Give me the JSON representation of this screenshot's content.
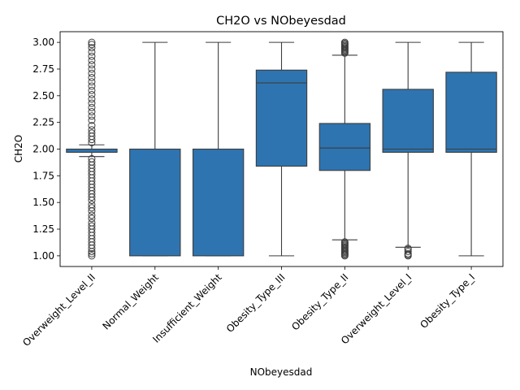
{
  "chart_data": {
    "type": "box",
    "title": "CH2O vs NObeyesdad",
    "xlabel": "NObeyesdad",
    "ylabel": "CH2O",
    "ylim": [
      0.9,
      3.1
    ],
    "yticks": [
      1.0,
      1.25,
      1.5,
      1.75,
      2.0,
      2.25,
      2.5,
      2.75,
      3.0
    ],
    "ytick_labels": [
      "1.00",
      "1.25",
      "1.50",
      "1.75",
      "2.00",
      "2.25",
      "2.50",
      "2.75",
      "3.00"
    ],
    "grid": false,
    "box_color": "#2e74b0",
    "categories": [
      "Overweight_Level_II",
      "Normal_Weight",
      "Insufficient_Weight",
      "Obesity_Type_III",
      "Obesity_Type_II",
      "Overweight_Level_I",
      "Obesity_Type_I"
    ],
    "boxes": [
      {
        "category": "Overweight_Level_II",
        "whisker_low": 1.93,
        "q1": 1.97,
        "median": 2.0,
        "q3": 2.0,
        "whisker_high": 2.04,
        "outliers": [
          1.0,
          1.02,
          1.04,
          1.07,
          1.1,
          1.13,
          1.16,
          1.19,
          1.22,
          1.25,
          1.28,
          1.31,
          1.35,
          1.38,
          1.42,
          1.45,
          1.48,
          1.52,
          1.55,
          1.58,
          1.61,
          1.64,
          1.67,
          1.7,
          1.73,
          1.76,
          1.79,
          1.82,
          1.85,
          1.88,
          1.91,
          2.06,
          2.09,
          2.12,
          2.15,
          2.18,
          2.22,
          2.27,
          2.31,
          2.35,
          2.39,
          2.43,
          2.47,
          2.51,
          2.55,
          2.59,
          2.63,
          2.67,
          2.71,
          2.75,
          2.79,
          2.83,
          2.87,
          2.91,
          2.95,
          2.98,
          3.0
        ]
      },
      {
        "category": "Normal_Weight",
        "whisker_low": 1.0,
        "q1": 1.0,
        "median": 2.0,
        "q3": 2.0,
        "whisker_high": 3.0,
        "outliers": []
      },
      {
        "category": "Insufficient_Weight",
        "whisker_low": 1.0,
        "q1": 1.0,
        "median": 2.0,
        "q3": 2.0,
        "whisker_high": 3.0,
        "outliers": []
      },
      {
        "category": "Obesity_Type_III",
        "whisker_low": 1.0,
        "q1": 1.84,
        "median": 2.62,
        "q3": 2.74,
        "whisker_high": 3.0,
        "outliers": []
      },
      {
        "category": "Obesity_Type_II",
        "whisker_low": 1.15,
        "q1": 1.8,
        "median": 2.01,
        "q3": 2.24,
        "whisker_high": 2.88,
        "outliers": [
          1.0,
          1.01,
          1.02,
          1.03,
          1.04,
          1.05,
          1.06,
          1.07,
          1.08,
          1.09,
          1.1,
          1.11,
          1.12,
          1.13,
          2.9,
          2.91,
          2.92,
          2.93,
          2.94,
          2.95,
          2.96,
          2.97,
          2.98,
          2.99,
          3.0
        ]
      },
      {
        "category": "Overweight_Level_I",
        "whisker_low": 1.08,
        "q1": 1.97,
        "median": 2.0,
        "q3": 2.56,
        "whisker_high": 3.0,
        "outliers": [
          1.0,
          1.01,
          1.02,
          1.04,
          1.06,
          1.07
        ]
      },
      {
        "category": "Obesity_Type_I",
        "whisker_low": 1.0,
        "q1": 1.97,
        "median": 2.0,
        "q3": 2.72,
        "whisker_high": 3.0,
        "outliers": []
      }
    ]
  }
}
